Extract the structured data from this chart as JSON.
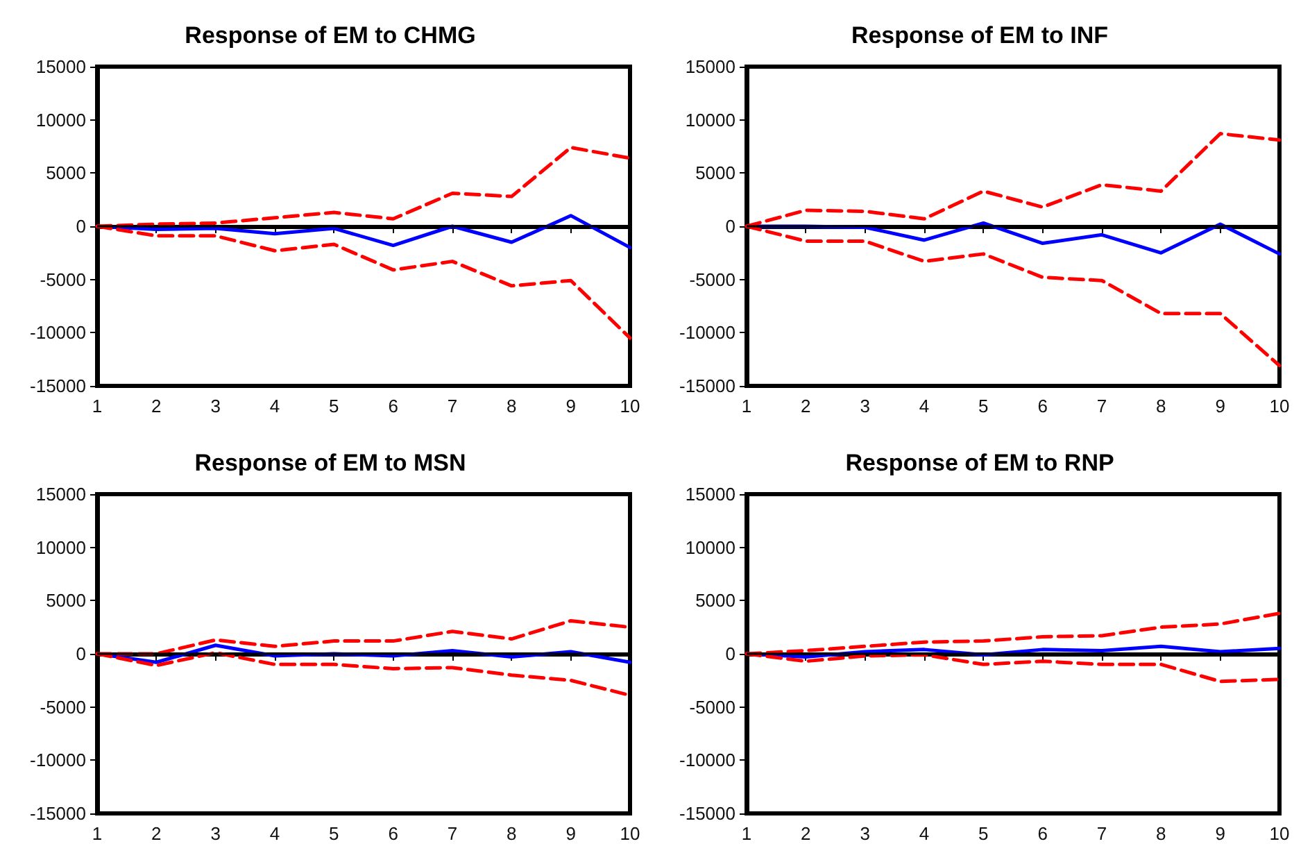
{
  "chart_data": [
    {
      "type": "line",
      "title": "Response of EM to CHMG",
      "x": [
        1,
        2,
        3,
        4,
        5,
        6,
        7,
        8,
        9,
        10
      ],
      "xlim": [
        1,
        10
      ],
      "xticks": [
        1,
        2,
        3,
        4,
        5,
        6,
        7,
        8,
        9,
        10
      ],
      "ylim": [
        -15000,
        15000
      ],
      "yticks": [
        -15000,
        -10000,
        -5000,
        0,
        5000,
        10000,
        15000
      ],
      "grid": false,
      "marker": "none",
      "ref_lines": [
        {
          "axis": "y",
          "value": 0,
          "color": "#000000"
        }
      ],
      "series": [
        {
          "color": "#0000ff",
          "line_style": "solid",
          "values": [
            0,
            -300,
            -200,
            -700,
            -200,
            -1800,
            0,
            -1500,
            1000,
            -2000
          ]
        },
        {
          "color": "#ff0000",
          "line_style": "dashed",
          "values": [
            0,
            200,
            300,
            800,
            1300,
            700,
            3100,
            2800,
            7400,
            6400
          ]
        },
        {
          "color": "#ff0000",
          "line_style": "dashed",
          "values": [
            0,
            -900,
            -900,
            -2300,
            -1700,
            -4100,
            -3300,
            -5600,
            -5100,
            -10500
          ]
        }
      ]
    },
    {
      "type": "line",
      "title": "Response of EM to INF",
      "x": [
        1,
        2,
        3,
        4,
        5,
        6,
        7,
        8,
        9,
        10
      ],
      "xlim": [
        1,
        10
      ],
      "xticks": [
        1,
        2,
        3,
        4,
        5,
        6,
        7,
        8,
        9,
        10
      ],
      "ylim": [
        -15000,
        15000
      ],
      "yticks": [
        -15000,
        -10000,
        -5000,
        0,
        5000,
        10000,
        15000
      ],
      "grid": false,
      "marker": "none",
      "ref_lines": [
        {
          "axis": "y",
          "value": 0,
          "color": "#000000"
        }
      ],
      "series": [
        {
          "color": "#0000ff",
          "line_style": "solid",
          "values": [
            0,
            0,
            -100,
            -1300,
            300,
            -1600,
            -800,
            -2500,
            200,
            -2600
          ]
        },
        {
          "color": "#ff0000",
          "line_style": "dashed",
          "values": [
            0,
            1500,
            1400,
            700,
            3300,
            1800,
            3900,
            3300,
            8700,
            8100
          ]
        },
        {
          "color": "#ff0000",
          "line_style": "dashed",
          "values": [
            0,
            -1400,
            -1400,
            -3300,
            -2600,
            -4800,
            -5100,
            -8200,
            -8200,
            -13100
          ]
        }
      ]
    },
    {
      "type": "line",
      "title": "Response of EM to MSN",
      "x": [
        1,
        2,
        3,
        4,
        5,
        6,
        7,
        8,
        9,
        10
      ],
      "xlim": [
        1,
        10
      ],
      "xticks": [
        1,
        2,
        3,
        4,
        5,
        6,
        7,
        8,
        9,
        10
      ],
      "ylim": [
        -15000,
        15000
      ],
      "yticks": [
        -15000,
        -10000,
        -5000,
        0,
        5000,
        10000,
        15000
      ],
      "grid": false,
      "marker": "none",
      "ref_lines": [
        {
          "axis": "y",
          "value": 0,
          "color": "#000000"
        }
      ],
      "series": [
        {
          "color": "#0000ff",
          "line_style": "solid",
          "values": [
            0,
            -800,
            800,
            -200,
            0,
            -200,
            300,
            -300,
            200,
            -800
          ]
        },
        {
          "color": "#ff0000",
          "line_style": "dashed",
          "values": [
            0,
            0,
            1300,
            700,
            1200,
            1200,
            2100,
            1400,
            3100,
            2500
          ]
        },
        {
          "color": "#ff0000",
          "line_style": "dashed",
          "values": [
            0,
            -1100,
            100,
            -1000,
            -1000,
            -1400,
            -1300,
            -2000,
            -2500,
            -3900
          ]
        }
      ]
    },
    {
      "type": "line",
      "title": "Response of EM to RNP",
      "x": [
        1,
        2,
        3,
        4,
        5,
        6,
        7,
        8,
        9,
        10
      ],
      "xlim": [
        1,
        10
      ],
      "xticks": [
        1,
        2,
        3,
        4,
        5,
        6,
        7,
        8,
        9,
        10
      ],
      "ylim": [
        -15000,
        15000
      ],
      "yticks": [
        -15000,
        -10000,
        -5000,
        0,
        5000,
        10000,
        15000
      ],
      "grid": false,
      "marker": "none",
      "ref_lines": [
        {
          "axis": "y",
          "value": 0,
          "color": "#000000"
        }
      ],
      "series": [
        {
          "color": "#0000ff",
          "line_style": "solid",
          "values": [
            0,
            -300,
            200,
            400,
            -100,
            400,
            300,
            700,
            200,
            500
          ]
        },
        {
          "color": "#ff0000",
          "line_style": "dashed",
          "values": [
            0,
            300,
            700,
            1100,
            1200,
            1600,
            1700,
            2500,
            2800,
            3800
          ]
        },
        {
          "color": "#ff0000",
          "line_style": "dashed",
          "values": [
            0,
            -700,
            -200,
            -100,
            -1000,
            -700,
            -1000,
            -1000,
            -2600,
            -2400
          ]
        }
      ]
    }
  ]
}
